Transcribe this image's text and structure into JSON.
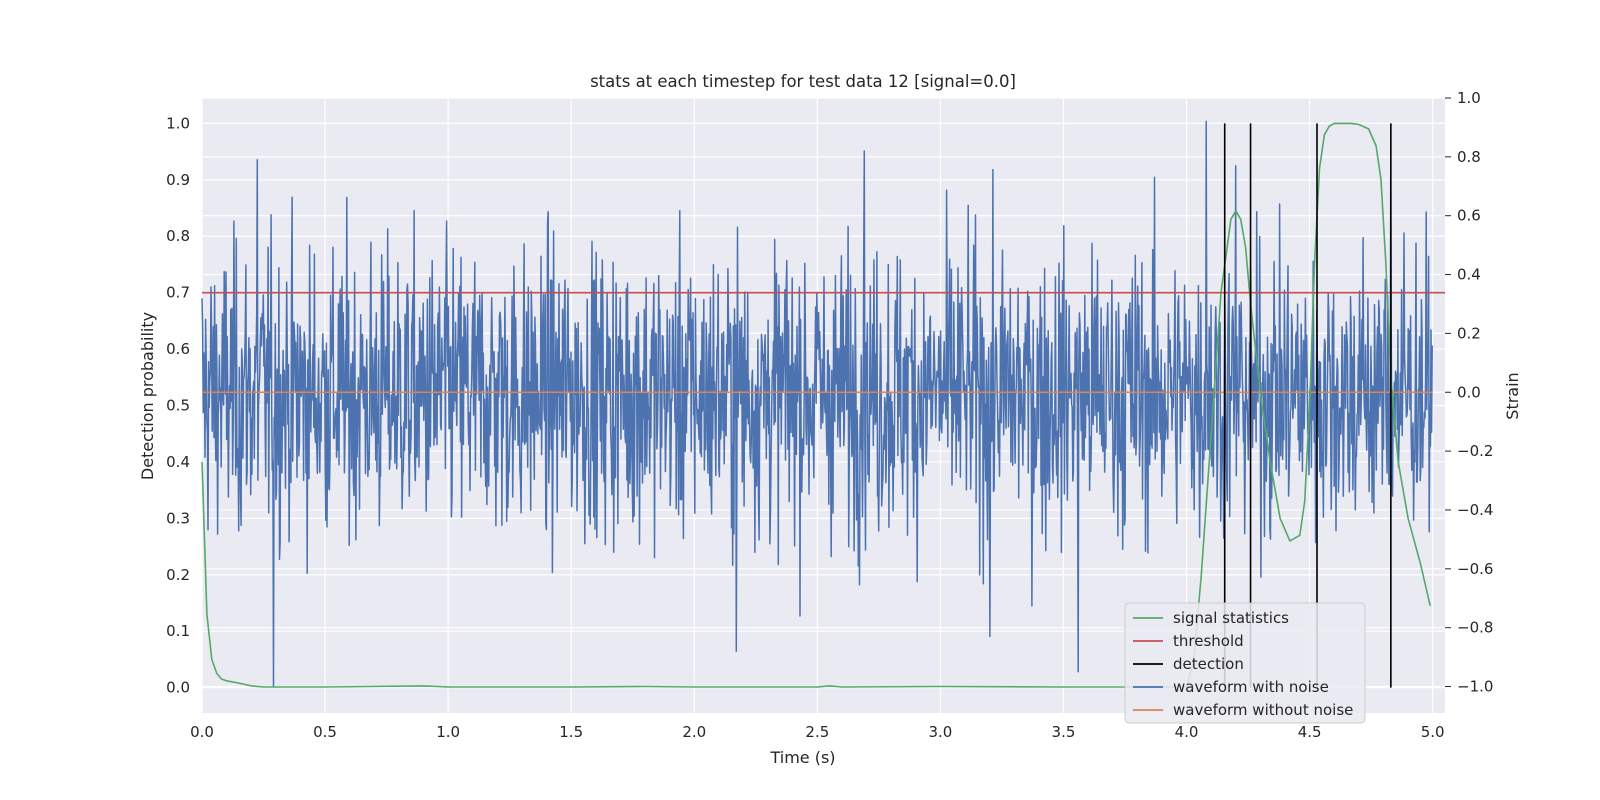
{
  "chart_data": {
    "type": "line",
    "title": "stats at each timestep for test data 12 [signal=0.0]",
    "xlabel": "Time (s)",
    "ylabel": "Detection probability",
    "y2label": "Strain",
    "xlim": [
      0.0,
      5.05
    ],
    "ylim": [
      -0.045,
      1.045
    ],
    "y2lim": [
      -1.09,
      1.0
    ],
    "xticks": [
      "0.0",
      "0.5",
      "1.0",
      "1.5",
      "2.0",
      "2.5",
      "3.0",
      "3.5",
      "4.0",
      "4.5",
      "5.0"
    ],
    "yticks": [
      "0.0",
      "0.1",
      "0.2",
      "0.3",
      "0.4",
      "0.5",
      "0.6",
      "0.7",
      "0.8",
      "0.9",
      "1.0"
    ],
    "y2ticks": [
      "−1.0",
      "−0.8",
      "−0.6",
      "−0.4",
      "−0.2",
      "0.0",
      "0.2",
      "0.4",
      "0.6",
      "0.8",
      "1.0"
    ],
    "grid": true,
    "legend_position": "lower-right",
    "series": [
      {
        "name": "signal statistics",
        "color": "#55a868",
        "axis": "left",
        "x": [
          0.0,
          0.02,
          0.04,
          0.06,
          0.08,
          0.1,
          0.15,
          0.2,
          0.25,
          0.5,
          0.9,
          1.0,
          1.5,
          1.8,
          2.0,
          2.5,
          2.55,
          2.6,
          3.0,
          3.5,
          3.9,
          4.0,
          4.03,
          4.06,
          4.1,
          4.14,
          4.18,
          4.2,
          4.22,
          4.24,
          4.26,
          4.3,
          4.34,
          4.38,
          4.42,
          4.46,
          4.48,
          4.5,
          4.52,
          4.54,
          4.56,
          4.58,
          4.6,
          4.63,
          4.67,
          4.7,
          4.74,
          4.77,
          4.79,
          4.81,
          4.83,
          4.86,
          4.9,
          4.95,
          4.99
        ],
        "y": [
          0.4,
          0.13,
          0.05,
          0.025,
          0.015,
          0.012,
          0.008,
          0.003,
          0.001,
          0.001,
          0.003,
          0.001,
          0.001,
          0.002,
          0.001,
          0.001,
          0.003,
          0.001,
          0.002,
          0.001,
          0.001,
          0.001,
          0.05,
          0.2,
          0.45,
          0.7,
          0.83,
          0.845,
          0.83,
          0.78,
          0.68,
          0.52,
          0.4,
          0.3,
          0.26,
          0.27,
          0.33,
          0.5,
          0.75,
          0.92,
          0.98,
          0.995,
          1.0,
          1.0,
          1.0,
          0.998,
          0.99,
          0.96,
          0.9,
          0.75,
          0.55,
          0.4,
          0.3,
          0.22,
          0.145
        ]
      },
      {
        "name": "threshold",
        "color": "#c44e52",
        "axis": "left",
        "x": [
          0.0,
          5.05
        ],
        "y": [
          0.7,
          0.7
        ]
      },
      {
        "name": "detection",
        "color": "#000000",
        "axis": "left",
        "x": [
          4.155,
          4.26,
          4.53,
          4.83
        ],
        "y": [
          1.0,
          1.0,
          1.0,
          1.0
        ]
      },
      {
        "name": "waveform with noise",
        "color": "#4c72b0",
        "axis": "right",
        "n_samples": 2048,
        "x_range": [
          0.0,
          4.998
        ],
        "std": 0.24,
        "y_range": [
          -1.0,
          0.95
        ],
        "peaks": [
          {
            "x": 0.225,
            "y": 0.79
          },
          {
            "x": 0.29,
            "y": -1.0
          },
          {
            "x": 2.17,
            "y": -0.88
          },
          {
            "x": 2.69,
            "y": 0.82
          },
          {
            "x": 3.2,
            "y": -0.83
          },
          {
            "x": 3.56,
            "y": -0.95
          },
          {
            "x": 4.08,
            "y": 0.92
          },
          {
            "x": 4.2,
            "y": 0.77
          },
          {
            "x": 4.83,
            "y": 0.73
          }
        ]
      },
      {
        "name": "waveform without noise",
        "color": "#dd8452",
        "axis": "right",
        "x": [
          0.0,
          5.0
        ],
        "y": [
          0.0,
          0.0
        ]
      }
    ]
  }
}
